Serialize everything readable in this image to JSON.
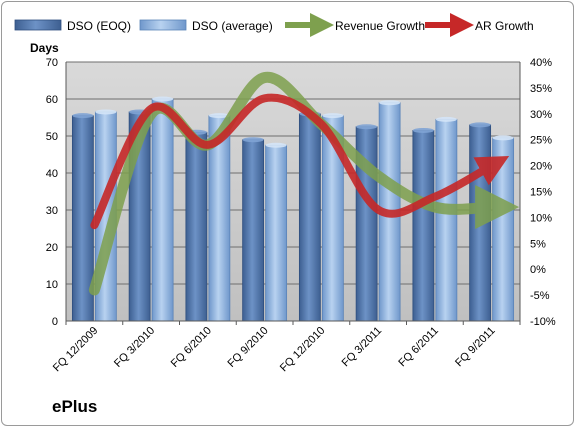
{
  "brand": "ePlus",
  "chart_data": {
    "type": "bar",
    "categories": [
      "FQ 12/2009",
      "FQ 3/2010",
      "FQ 6/2010",
      "FQ 9/2010",
      "FQ 12/2010",
      "FQ 3/2011",
      "FQ 6/2011",
      "FQ 9/2011"
    ],
    "ylabel": "Days",
    "ylim": [
      0,
      70
    ],
    "yticks": [
      "0",
      "10",
      "20",
      "30",
      "40",
      "50",
      "60",
      "70"
    ],
    "y2lim": [
      -10,
      40
    ],
    "y2ticks": [
      "-10%",
      "-5%",
      "0%",
      "5%",
      "10%",
      "15%",
      "20%",
      "25%",
      "30%",
      "35%",
      "40%"
    ],
    "grid": true,
    "legend": "top",
    "series": [
      {
        "name": "DSO (EOQ)",
        "kind": "bar",
        "axis": "left",
        "color": "#5a7fb5",
        "values": [
          55.5,
          56.5,
          51,
          49,
          56,
          52.5,
          51.5,
          53
        ]
      },
      {
        "name": "DSO (average)",
        "kind": "bar",
        "axis": "left",
        "color": "#9dbde3",
        "values": [
          56.5,
          60,
          55.5,
          47.5,
          55.5,
          59,
          54.5,
          49.5
        ]
      },
      {
        "name": "Revenue Growth",
        "kind": "line",
        "axis": "right",
        "color": "#7ea04e",
        "values": [
          -4,
          30,
          24,
          37,
          28,
          18,
          12,
          12
        ]
      },
      {
        "name": "AR Growth",
        "kind": "line",
        "axis": "right",
        "color": "#c62828",
        "values": [
          8.5,
          31,
          24,
          33,
          28,
          11.5,
          14,
          20
        ]
      }
    ]
  }
}
